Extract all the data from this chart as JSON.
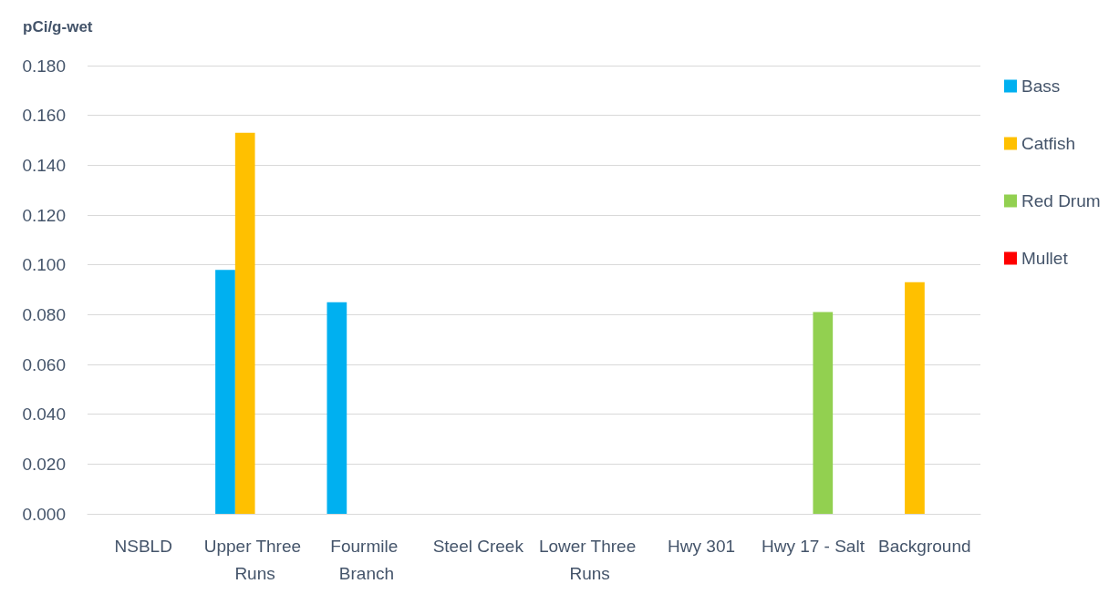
{
  "chart_data": {
    "type": "bar",
    "ylabel": "pCi/g-wet",
    "categories": [
      "NSBLD",
      "Upper Three Runs",
      "Fourmile Branch",
      "Steel Creek",
      "Lower Three Runs",
      "Hwy 301",
      "Hwy 17 - Salt",
      "Background"
    ],
    "series": [
      {
        "name": "Bass",
        "color": "#00b0f0",
        "values": [
          null,
          0.098,
          0.085,
          null,
          null,
          null,
          null,
          null
        ]
      },
      {
        "name": "Catfish",
        "color": "#ffc000",
        "values": [
          null,
          0.153,
          null,
          null,
          null,
          null,
          null,
          0.093
        ]
      },
      {
        "name": "Red Drum",
        "color": "#92d050",
        "values": [
          null,
          null,
          null,
          null,
          null,
          null,
          0.081,
          null
        ]
      },
      {
        "name": "Mullet",
        "color": "#ff0000",
        "values": [
          null,
          null,
          null,
          null,
          null,
          null,
          null,
          null
        ]
      }
    ],
    "ylim": [
      0,
      0.18
    ],
    "yticks": [
      {
        "value": 0,
        "label": "0.000"
      },
      {
        "value": 0.02,
        "label": "0.020"
      },
      {
        "value": 0.04,
        "label": "0.040"
      },
      {
        "value": 0.06,
        "label": "0.060"
      },
      {
        "value": 0.08,
        "label": "0.080"
      },
      {
        "value": 0.1,
        "label": "0.100"
      },
      {
        "value": 0.12,
        "label": "0.120"
      },
      {
        "value": 0.14,
        "label": "0.140"
      },
      {
        "value": 0.16,
        "label": "0.160"
      },
      {
        "value": 0.18,
        "label": "0.180"
      }
    ],
    "grid": "y",
    "legend": "right"
  }
}
